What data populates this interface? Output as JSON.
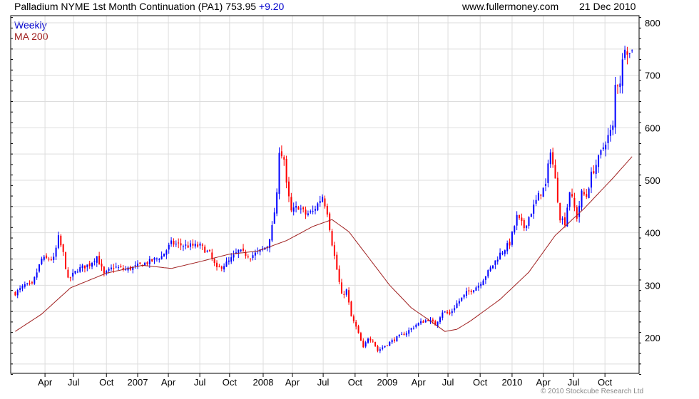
{
  "header": {
    "title": "Palladium NYME 1st Month Continuation (PA1) 753.95",
    "change": "+9.20",
    "site": "www.fullermoney.com",
    "date": "21 Dec 2010"
  },
  "legend": {
    "weekly": "Weekly",
    "ma": "MA 200"
  },
  "footer": {
    "copyright": "© 2010 Stockcube Research Ltd"
  },
  "colors": {
    "up": "#0000ff",
    "down": "#ff0000",
    "ma": "#a02020",
    "grid": "#dddddd"
  },
  "chart_data": {
    "type": "candlestick",
    "title": "Palladium NYME 1st Month Continuation (PA1)",
    "x_unit": "weeks since start of 2006",
    "ylim": [
      130,
      810
    ],
    "yticks": [
      200,
      300,
      400,
      500,
      600,
      700,
      800
    ],
    "xticks": [
      {
        "label": "Apr",
        "w": 13.4
      },
      {
        "label": "Jul",
        "w": 25.3
      },
      {
        "label": "Oct",
        "w": 39
      },
      {
        "label": "2007",
        "w": 52
      },
      {
        "label": "Apr",
        "w": 64.8
      },
      {
        "label": "Jul",
        "w": 77.9
      },
      {
        "label": "Oct",
        "w": 90.3
      },
      {
        "label": "2008",
        "w": 104.3
      },
      {
        "label": "Apr",
        "w": 116.5
      },
      {
        "label": "Jul",
        "w": 129.3
      },
      {
        "label": "Oct",
        "w": 142.6
      },
      {
        "label": "2009",
        "w": 156
      },
      {
        "label": "Apr",
        "w": 169
      },
      {
        "label": "Jul",
        "w": 181.3
      },
      {
        "label": "Oct",
        "w": 194.7
      },
      {
        "label": "2010",
        "w": 208
      },
      {
        "label": "Apr",
        "w": 221
      },
      {
        "label": "Jul",
        "w": 233.6
      },
      {
        "label": "Oct",
        "w": 246.7
      }
    ],
    "price_keypoints": [
      [
        1,
        285
      ],
      [
        5,
        300
      ],
      [
        8,
        300
      ],
      [
        12,
        350
      ],
      [
        17,
        350
      ],
      [
        19,
        390
      ],
      [
        21,
        360
      ],
      [
        23,
        310
      ],
      [
        27,
        330
      ],
      [
        32,
        340
      ],
      [
        35,
        355
      ],
      [
        38,
        320
      ],
      [
        42,
        335
      ],
      [
        47,
        330
      ],
      [
        51,
        335
      ],
      [
        57,
        345
      ],
      [
        62,
        355
      ],
      [
        66,
        380
      ],
      [
        72,
        375
      ],
      [
        78,
        375
      ],
      [
        82,
        360
      ],
      [
        85,
        330
      ],
      [
        90,
        345
      ],
      [
        94,
        365
      ],
      [
        99,
        355
      ],
      [
        103,
        365
      ],
      [
        106,
        375
      ],
      [
        108,
        410
      ],
      [
        110,
        470
      ],
      [
        111,
        560
      ],
      [
        113,
        540
      ],
      [
        114,
        490
      ],
      [
        116,
        440
      ],
      [
        119,
        450
      ],
      [
        122,
        435
      ],
      [
        125,
        440
      ],
      [
        129,
        470
      ],
      [
        131,
        440
      ],
      [
        133,
        380
      ],
      [
        135,
        330
      ],
      [
        137,
        280
      ],
      [
        139,
        290
      ],
      [
        141,
        240
      ],
      [
        143,
        220
      ],
      [
        146,
        180
      ],
      [
        148,
        200
      ],
      [
        150,
        195
      ],
      [
        152,
        175
      ],
      [
        155,
        185
      ],
      [
        160,
        200
      ],
      [
        164,
        210
      ],
      [
        168,
        225
      ],
      [
        173,
        235
      ],
      [
        176,
        225
      ],
      [
        179,
        250
      ],
      [
        182,
        245
      ],
      [
        185,
        265
      ],
      [
        189,
        285
      ],
      [
        194,
        300
      ],
      [
        198,
        325
      ],
      [
        203,
        360
      ],
      [
        207,
        380
      ],
      [
        210,
        430
      ],
      [
        213,
        410
      ],
      [
        216,
        440
      ],
      [
        219,
        470
      ],
      [
        222,
        490
      ],
      [
        224,
        560
      ],
      [
        226,
        500
      ],
      [
        228,
        430
      ],
      [
        230,
        420
      ],
      [
        232,
        480
      ],
      [
        235,
        430
      ],
      [
        237,
        475
      ],
      [
        239,
        470
      ],
      [
        241,
        510
      ],
      [
        244,
        540
      ],
      [
        247,
        575
      ],
      [
        250,
        600
      ],
      [
        251,
        680
      ],
      [
        253,
        690
      ],
      [
        255,
        760
      ],
      [
        257,
        740
      ],
      [
        258,
        754
      ]
    ],
    "ma200_keypoints": [
      [
        1,
        212
      ],
      [
        12,
        245
      ],
      [
        24,
        295
      ],
      [
        39,
        323
      ],
      [
        54,
        338
      ],
      [
        66,
        332
      ],
      [
        78,
        345
      ],
      [
        90,
        359
      ],
      [
        102,
        365
      ],
      [
        114,
        385
      ],
      [
        125,
        412
      ],
      [
        133,
        425
      ],
      [
        140,
        402
      ],
      [
        149,
        348
      ],
      [
        157,
        300
      ],
      [
        166,
        257
      ],
      [
        173,
        235
      ],
      [
        180,
        212
      ],
      [
        185,
        216
      ],
      [
        191,
        233
      ],
      [
        203,
        273
      ],
      [
        215,
        325
      ],
      [
        226,
        395
      ],
      [
        238,
        446
      ],
      [
        250,
        504
      ],
      [
        258,
        545
      ]
    ],
    "series": [
      {
        "name": "Weekly"
      },
      {
        "name": "MA 200"
      }
    ]
  }
}
